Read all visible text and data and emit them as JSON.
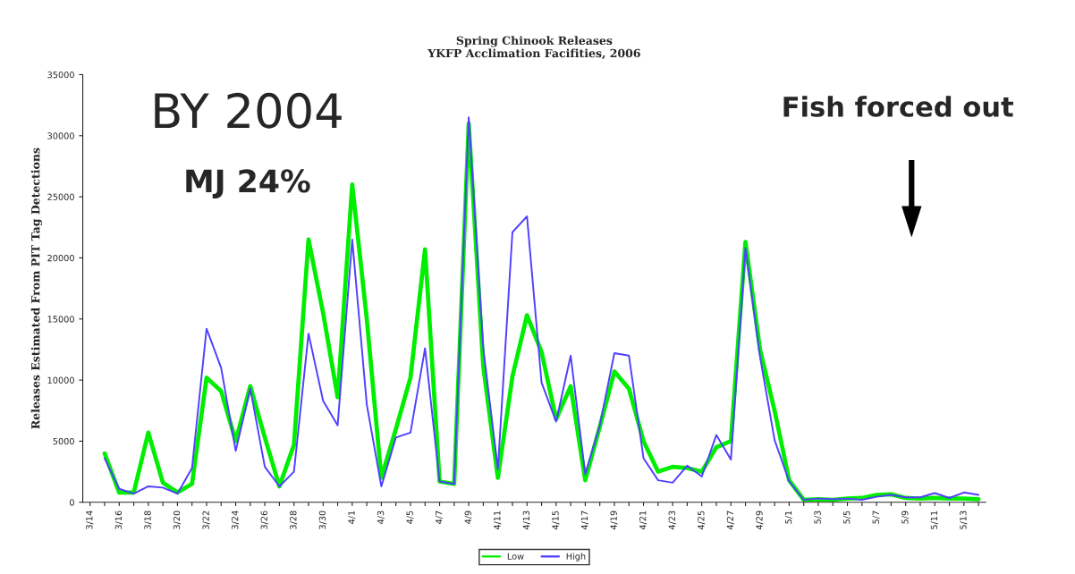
{
  "chart_data": {
    "type": "line",
    "title": "Spring Chinook Releases\nYKFP Acclimation Facifities, 2006",
    "ylabel": "Releases Estimated From PIT Tag Detections",
    "categories": [
      "3/14",
      null,
      "3/16",
      null,
      "3/18",
      null,
      "3/20",
      null,
      "3/22",
      null,
      "3/24",
      null,
      "3/26",
      null,
      "3/28",
      null,
      "3/30",
      null,
      "4/1",
      null,
      "4/3",
      null,
      "4/5",
      null,
      "4/7",
      null,
      "4/9",
      null,
      "4/11",
      null,
      "4/13",
      null,
      "4/15",
      null,
      "4/17",
      null,
      "4/19",
      null,
      "4/21",
      null,
      "4/23",
      null,
      "4/25",
      null,
      "4/27",
      null,
      "4/29",
      null,
      "5/1",
      null,
      "5/3",
      null,
      "5/5",
      null,
      "5/7",
      null,
      "5/9",
      null,
      "5/11",
      null,
      "5/13",
      null
    ],
    "series": [
      {
        "name": "Low",
        "color": "#00ee00",
        "values": [
          null,
          4000,
          800,
          800,
          5700,
          1600,
          800,
          1500,
          10200,
          9100,
          5000,
          9500,
          5300,
          1300,
          4700,
          21500,
          15500,
          8600,
          26000,
          15000,
          2000,
          6000,
          10200,
          20700,
          1700,
          1500,
          31000,
          11100,
          2000,
          10300,
          15300,
          12300,
          6800,
          9500,
          1800,
          6200,
          10700,
          9300,
          5000,
          2500,
          2900,
          2800,
          2500,
          4500,
          5000,
          21300,
          12500,
          7500,
          1800,
          200,
          250,
          200,
          300,
          350,
          600,
          650,
          350,
          300,
          350,
          300,
          300,
          250
        ]
      },
      {
        "name": "High",
        "color": "#5040ff",
        "values": [
          null,
          3600,
          1100,
          700,
          1300,
          1200,
          700,
          2800,
          14200,
          11000,
          4200,
          9300,
          2900,
          1300,
          2500,
          13800,
          8300,
          6300,
          21500,
          8000,
          1300,
          5300,
          5700,
          12600,
          1700,
          1500,
          31500,
          12600,
          2700,
          22100,
          23400,
          9800,
          6600,
          12000,
          2300,
          6300,
          12200,
          12000,
          3600,
          1800,
          1600,
          3000,
          2100,
          5500,
          3500,
          20800,
          11900,
          5100,
          1700,
          200,
          300,
          250,
          300,
          200,
          450,
          600,
          400,
          400,
          750,
          350,
          800,
          600
        ]
      }
    ],
    "ylim": [
      0,
      35000
    ],
    "yticks": [
      0,
      5000,
      10000,
      15000,
      20000,
      25000,
      30000,
      35000
    ],
    "grid": false,
    "legend": "bottom",
    "marker": "none",
    "line_style": "solid",
    "annotations": [
      "BY 2004",
      "MJ 24%",
      "Fish forced out"
    ]
  }
}
